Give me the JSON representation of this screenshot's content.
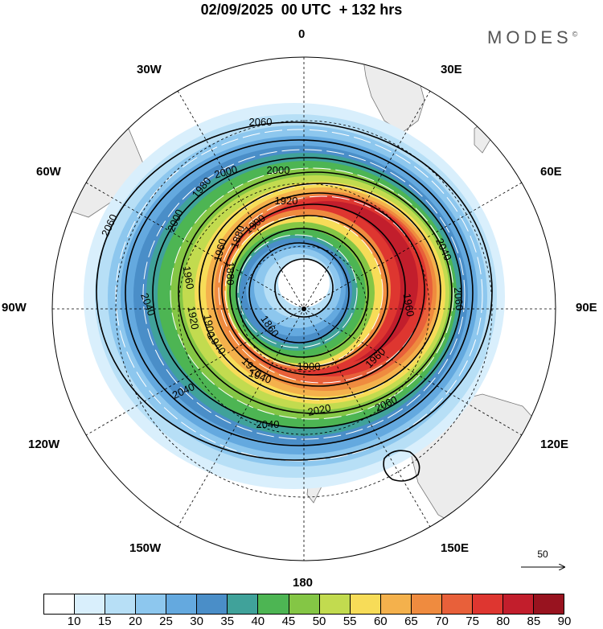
{
  "title": "02/09/2025  00 UTC  + 132 hrs",
  "logo": "MODES",
  "logo_mark": "©",
  "longitude_labels": {
    "top": "0",
    "top_right": "30E",
    "right_upper": "60E",
    "right": "90E",
    "right_lower": "120E",
    "bottom_right": "150E",
    "bottom": "180",
    "bottom_left": "150W",
    "left_lower": "120W",
    "left": "90W",
    "left_upper": "60W",
    "top_left": "30W"
  },
  "contour_labels": [
    "2060",
    "2060",
    "2040",
    "2040",
    "2060",
    "2060",
    "2040",
    "2040",
    "2020",
    "2000",
    "2000",
    "2000",
    "1980",
    "1960",
    "1960",
    "1920",
    "1900",
    "1900",
    "1880",
    "1880",
    "1860",
    "1960",
    "1960",
    "1940",
    "1940",
    "1920",
    "1920",
    "1900"
  ],
  "reference_vector": "50",
  "colorbar": {
    "ticks": [
      "10",
      "15",
      "20",
      "25",
      "30",
      "35",
      "40",
      "45",
      "50",
      "55",
      "60",
      "65",
      "70",
      "75",
      "80",
      "85",
      "90"
    ],
    "colors": [
      "#ffffff",
      "#d9effc",
      "#b7dff6",
      "#8dc7ee",
      "#64a9df",
      "#4a8ec8",
      "#40a29a",
      "#4db553",
      "#84c645",
      "#c2db4f",
      "#f7dc58",
      "#f4b14c",
      "#ef8b3f",
      "#e8603a",
      "#de3630",
      "#c21e2c",
      "#98131f"
    ]
  }
}
